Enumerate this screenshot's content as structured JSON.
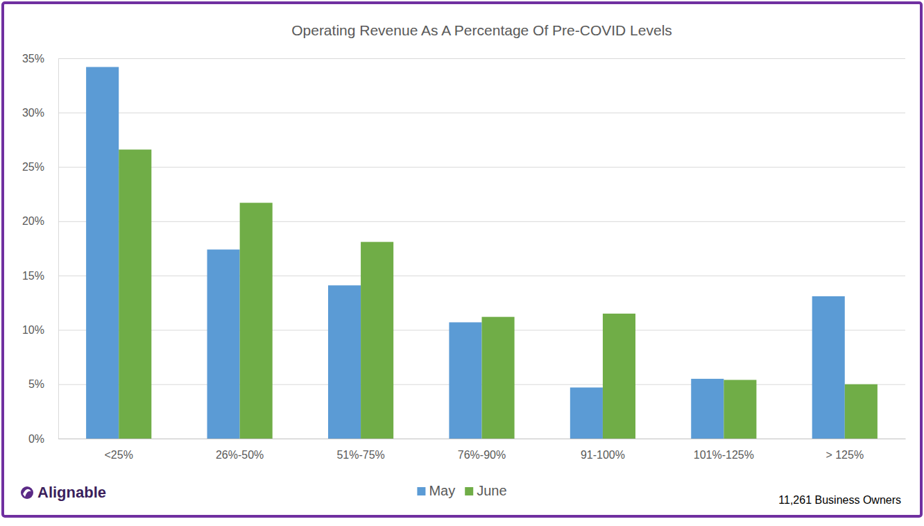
{
  "chart_data": {
    "type": "bar",
    "title": "Operating Revenue As A Percentage Of Pre-COVID Levels",
    "categories": [
      "<25%",
      "26%-50%",
      "51%-75%",
      "76%-90%",
      "91-100%",
      "101%-125%",
      "> 125%"
    ],
    "series": [
      {
        "name": "May",
        "color": "#5b9bd5",
        "values": [
          34.2,
          17.4,
          14.1,
          10.7,
          4.7,
          5.5,
          13.1
        ]
      },
      {
        "name": "June",
        "color": "#70ad47",
        "values": [
          26.6,
          21.7,
          18.1,
          11.2,
          11.5,
          5.4,
          5.0
        ]
      }
    ],
    "ylim": [
      0,
      35
    ],
    "yticks": [
      {
        "value": 0,
        "label": "0%"
      },
      {
        "value": 5,
        "label": "5%"
      },
      {
        "value": 10,
        "label": "10%"
      },
      {
        "value": 15,
        "label": "15%"
      },
      {
        "value": 20,
        "label": "20%"
      },
      {
        "value": 25,
        "label": "25%"
      },
      {
        "value": 30,
        "label": "30%"
      },
      {
        "value": 35,
        "label": "35%"
      }
    ],
    "grid": true,
    "legend": "bottom",
    "source": "Alignable",
    "note": "11,261 Business Owners"
  }
}
